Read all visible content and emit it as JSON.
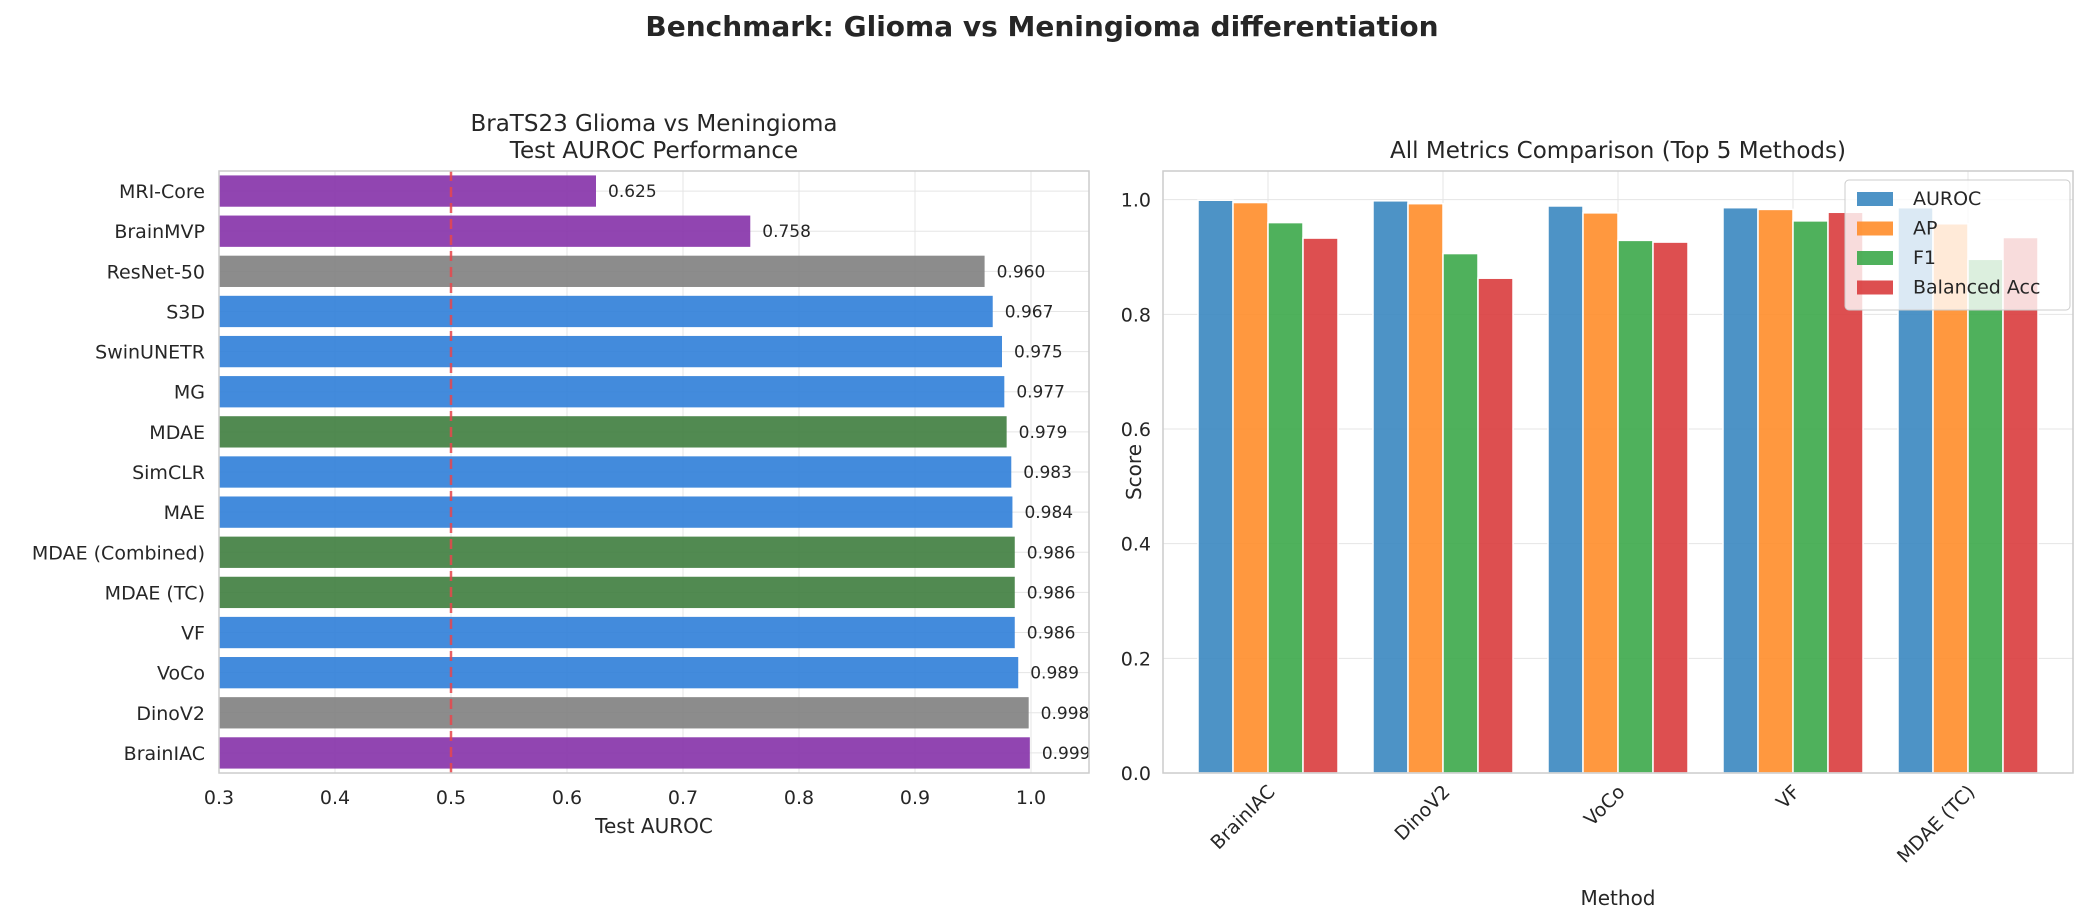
{
  "suptitle": "Benchmark: Glioma vs Meningioma differentiation",
  "colors": {
    "blue": "#2f7ed8",
    "green": "#3e7d3e",
    "gray": "#808080",
    "purple": "#8531a8",
    "baseline": "#e8474c",
    "auroc": "#3a87c0",
    "ap": "#ff8d2a",
    "f1": "#3ca94a",
    "balanced_acc": "#d93c3d",
    "grid": "#e5e5e5",
    "spine": "#cccccc"
  },
  "chart_data": [
    {
      "type": "bar",
      "orientation": "horizontal",
      "title": "BraTS23 Glioma vs Meningioma\nTest AUROC Performance",
      "xlabel": "Test AUROC",
      "ylabel": "",
      "xlim": [
        0.3,
        1.05
      ],
      "xticks": [
        0.3,
        0.4,
        0.5,
        0.6,
        0.7,
        0.8,
        0.9,
        1.0
      ],
      "xtick_labels": [
        "0.3",
        "0.4",
        "0.5",
        "0.6",
        "0.7",
        "0.8",
        "0.9",
        "1.0"
      ],
      "baseline": 0.5,
      "grid": true,
      "categories": [
        "MRI-Core",
        "BrainMVP",
        "ResNet-50",
        "S3D",
        "SwinUNETR",
        "MG",
        "MDAE",
        "SimCLR",
        "MAE",
        "MDAE (Combined)",
        "MDAE (TC)",
        "VF",
        "VoCo",
        "DinoV2",
        "BrainIAC"
      ],
      "values": [
        0.625,
        0.758,
        0.96,
        0.967,
        0.975,
        0.977,
        0.979,
        0.983,
        0.984,
        0.986,
        0.986,
        0.986,
        0.989,
        0.998,
        0.999
      ],
      "value_labels": [
        "0.625",
        "0.758",
        "0.960",
        "0.967",
        "0.975",
        "0.977",
        "0.979",
        "0.983",
        "0.984",
        "0.986",
        "0.986",
        "0.986",
        "0.989",
        "0.998",
        "0.999"
      ],
      "bar_colors": [
        "purple",
        "purple",
        "gray",
        "blue",
        "blue",
        "blue",
        "green",
        "blue",
        "blue",
        "green",
        "green",
        "blue",
        "blue",
        "gray",
        "purple"
      ]
    },
    {
      "type": "bar",
      "title": "All Metrics Comparison (Top 5 Methods)",
      "xlabel": "Method",
      "ylabel": "Score",
      "ylim": [
        0,
        1.05
      ],
      "yticks": [
        0.0,
        0.2,
        0.4,
        0.6,
        0.8,
        1.0
      ],
      "ytick_labels": [
        "0.0",
        "0.2",
        "0.4",
        "0.6",
        "0.8",
        "1.0"
      ],
      "grid": true,
      "legend_position": "top-right",
      "categories": [
        "BrainIAC",
        "DinoV2",
        "VoCo",
        "VF",
        "MDAE (TC)"
      ],
      "series": [
        {
          "name": "AUROC",
          "color": "auroc",
          "values": [
            0.999,
            0.998,
            0.989,
            0.986,
            0.986
          ]
        },
        {
          "name": "AP",
          "color": "ap",
          "values": [
            0.995,
            0.993,
            0.977,
            0.983,
            0.958
          ]
        },
        {
          "name": "F1",
          "color": "f1",
          "values": [
            0.96,
            0.906,
            0.929,
            0.963,
            0.896
          ]
        },
        {
          "name": "Balanced Acc",
          "color": "balanced_acc",
          "values": [
            0.933,
            0.863,
            0.926,
            0.978,
            0.934
          ]
        }
      ]
    }
  ]
}
